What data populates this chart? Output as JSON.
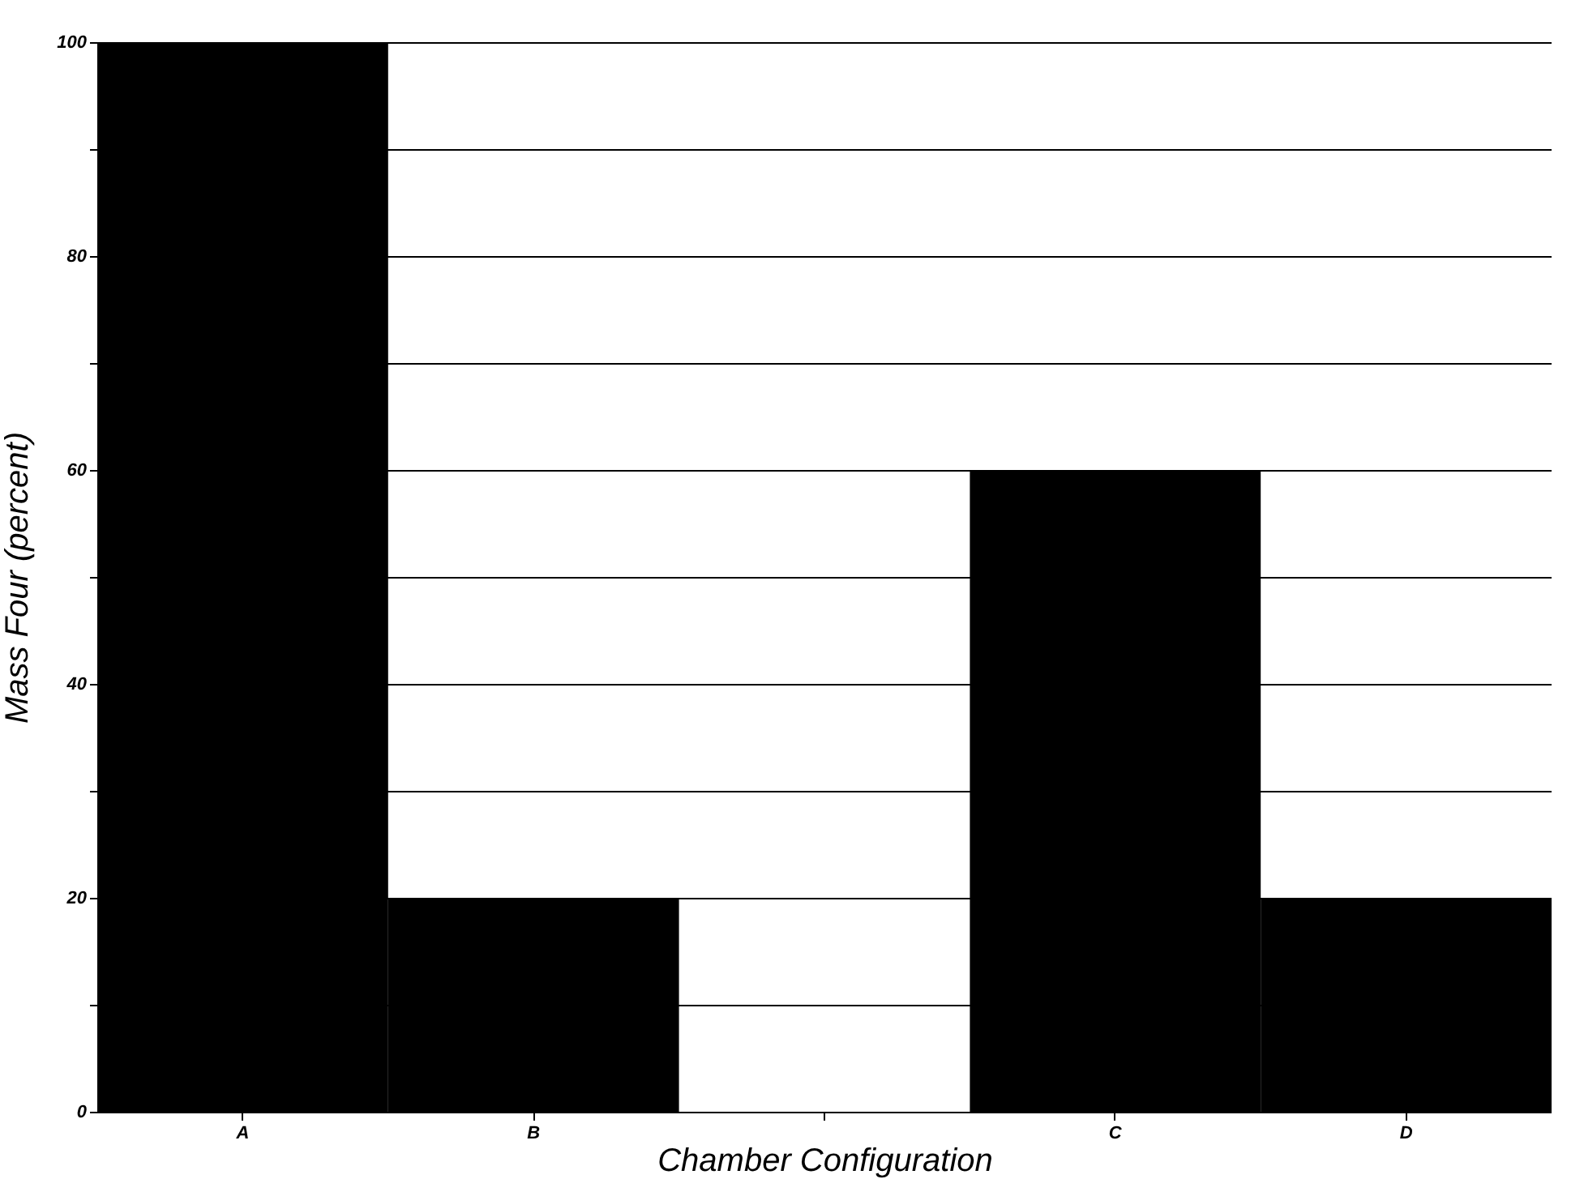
{
  "chart_data": {
    "type": "bar",
    "xlabel": "Chamber Configuration",
    "ylabel": "Mass Four (percent)",
    "categories": [
      "A",
      "B",
      null,
      "C",
      "D"
    ],
    "values": [
      100,
      20,
      0,
      60,
      20
    ],
    "color": "#000000",
    "ylim": [
      0,
      100
    ],
    "yticks": [
      0,
      {
        "value": 10,
        "label": null
      },
      20,
      {
        "value": 30,
        "label": null
      },
      40,
      {
        "value": 50,
        "label": null
      },
      60,
      {
        "value": 70,
        "label": null
      },
      80,
      {
        "value": 90,
        "label": null
      },
      100
    ],
    "grid": "y"
  }
}
